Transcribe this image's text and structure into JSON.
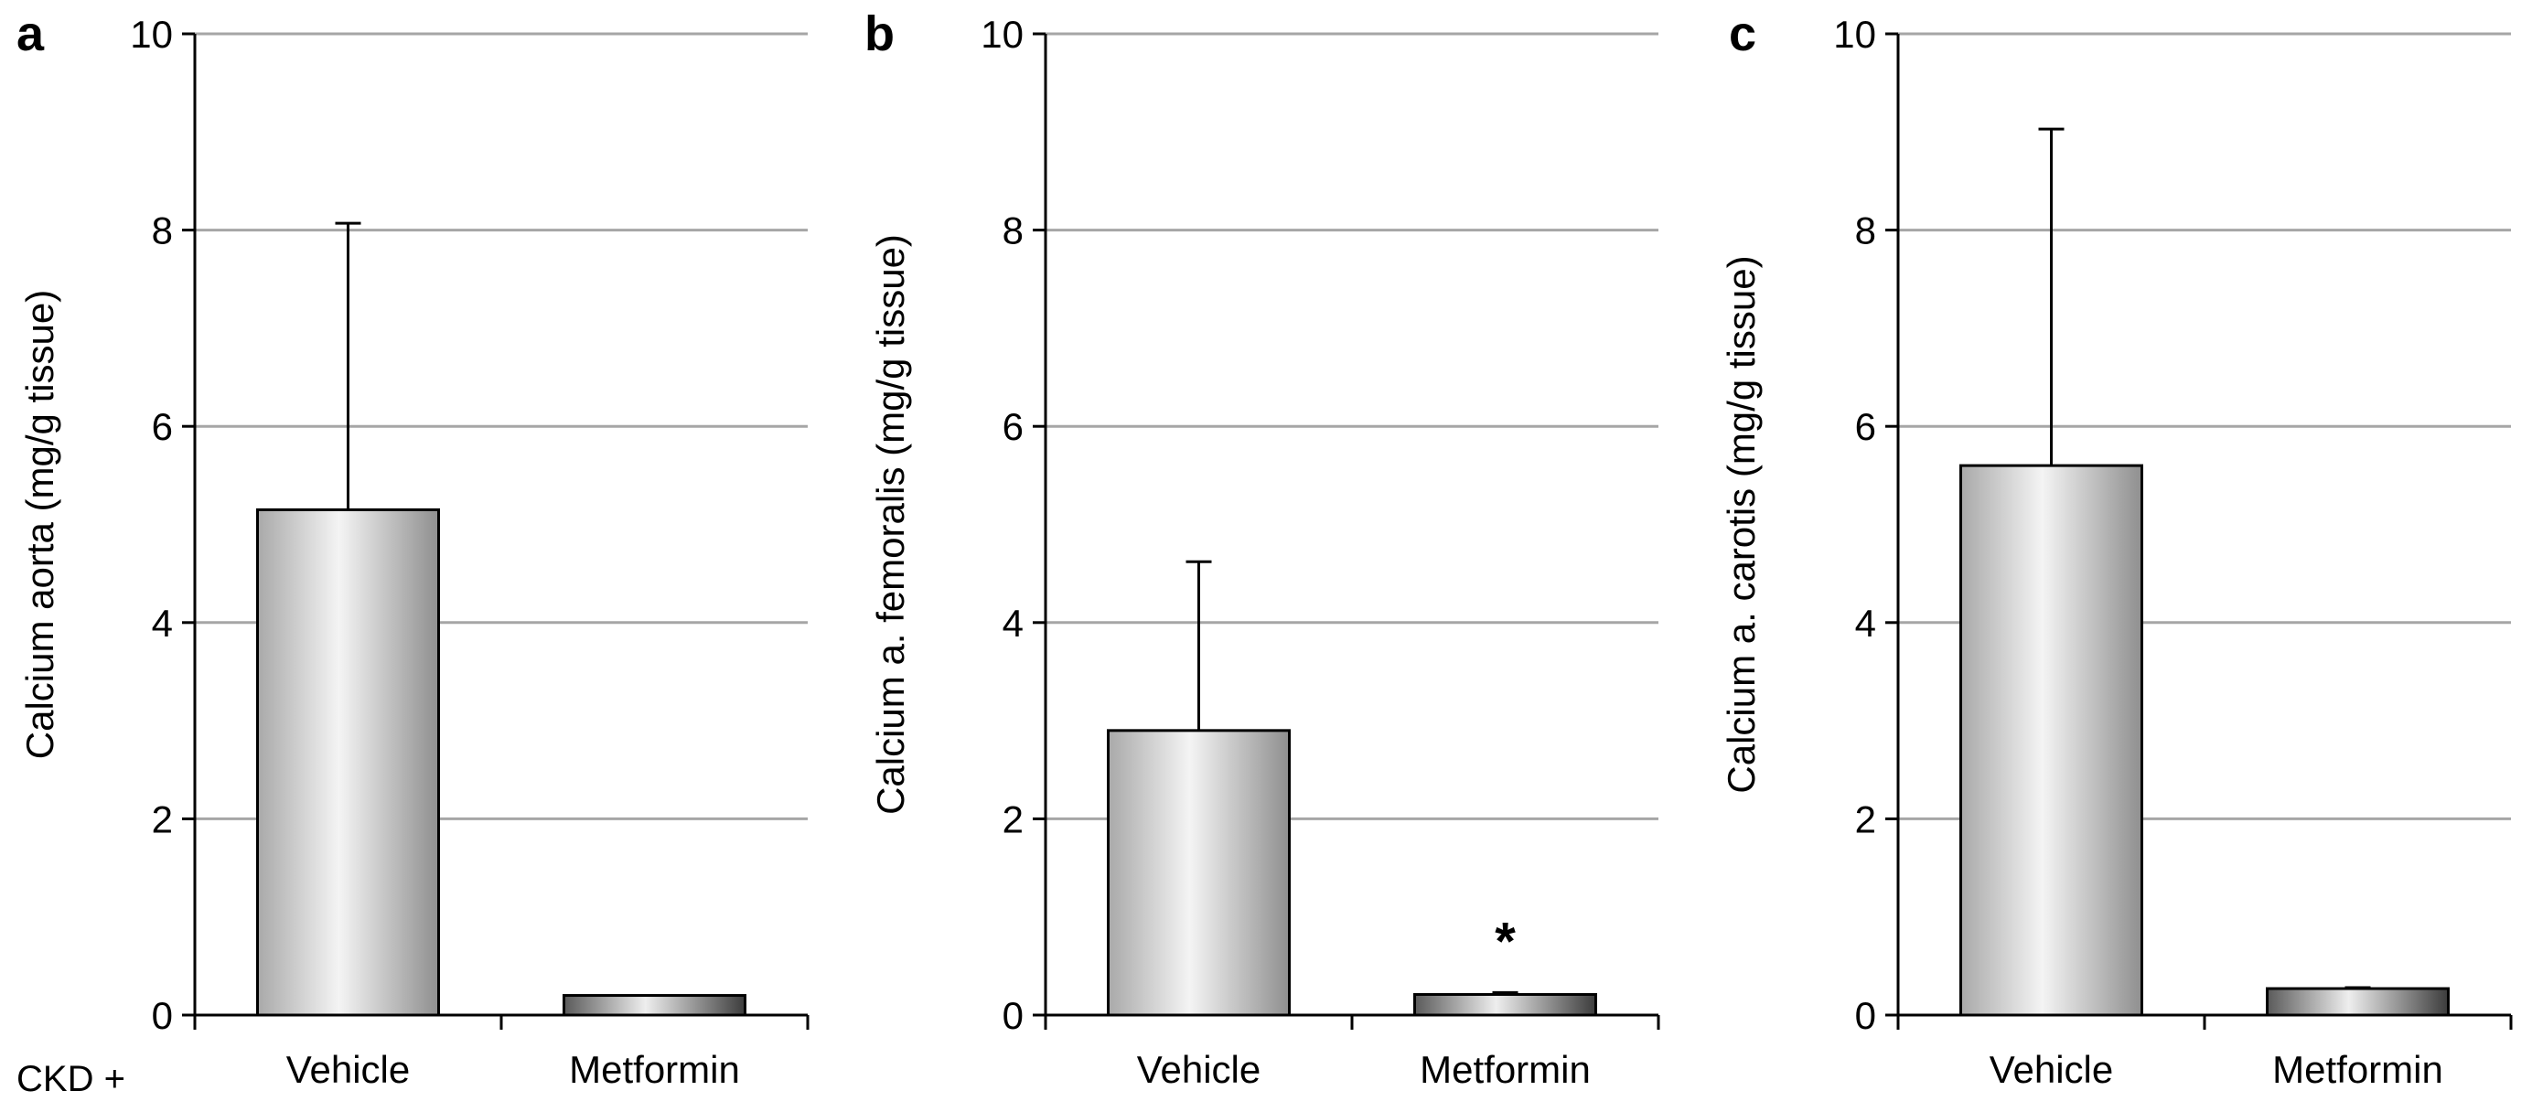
{
  "figure": {
    "row_prefix": "CKD +"
  },
  "chart_data": [
    {
      "type": "bar",
      "panel_label": "a",
      "ylabel": "Calcium aorta (mg/g tissue)",
      "categories": [
        "Vehicle",
        "Metformin"
      ],
      "values": [
        5.15,
        0.2
      ],
      "error_upper": [
        2.92,
        0.0
      ],
      "ylim": [
        0,
        10
      ],
      "yticks": [
        0,
        2,
        4,
        6,
        8,
        10
      ],
      "grid": true,
      "annotations": []
    },
    {
      "type": "bar",
      "panel_label": "b",
      "ylabel": "Calcium a. femoralis (mg/g tissue)",
      "categories": [
        "Vehicle",
        "Metformin"
      ],
      "values": [
        2.9,
        0.21
      ],
      "error_upper": [
        1.72,
        0.02
      ],
      "ylim": [
        0,
        10
      ],
      "yticks": [
        0,
        2,
        4,
        6,
        8,
        10
      ],
      "grid": true,
      "annotations": [
        {
          "category": "Metformin",
          "text": "*"
        }
      ]
    },
    {
      "type": "bar",
      "panel_label": "c",
      "ylabel": "Calcium a. carotis (mg/g tissue)",
      "categories": [
        "Vehicle",
        "Metformin"
      ],
      "values": [
        5.6,
        0.27
      ],
      "error_upper": [
        3.43,
        0.01
      ],
      "ylim": [
        0,
        10
      ],
      "yticks": [
        0,
        2,
        4,
        6,
        8,
        10
      ],
      "grid": true,
      "annotations": []
    }
  ],
  "colors": {
    "grid": "#a6a6a6",
    "axis": "#000000",
    "bar_outline": "#000000",
    "vehicle_gradient": [
      "#a9a9a9",
      "#f4f4f4",
      "#8f8f8f"
    ],
    "metformin_gradient": [
      "#5a5a5a",
      "#eeeeee",
      "#3c3c3c"
    ]
  }
}
